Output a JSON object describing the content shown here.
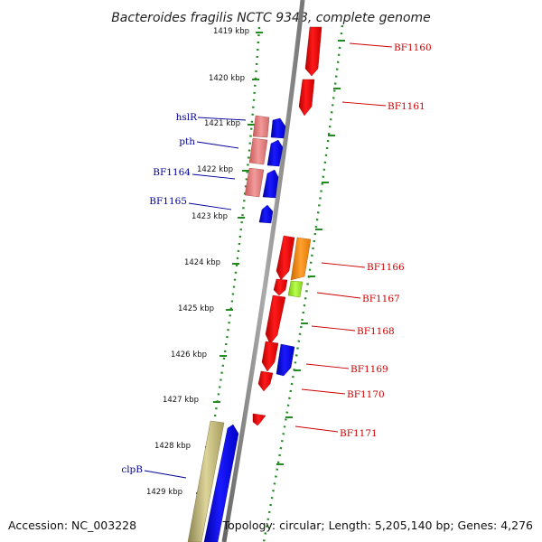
{
  "title": "Bacteroides fragilis NCTC 9343, complete genome",
  "footer": {
    "accession": "Accession: NC_003228",
    "topology": "Topology: circular; Length: 5,205,140 bp; Genes: 4,276"
  },
  "scale_labels": [
    "1419 kbp",
    "1420 kbp",
    "1421 kbp",
    "1422 kbp",
    "1423 kbp",
    "1424 kbp",
    "1425 kbp",
    "1426 kbp",
    "1427 kbp",
    "1428 kbp",
    "1429 kbp"
  ],
  "genes_right": [
    "BF1160",
    "BF1161",
    "BF1166",
    "BF1167",
    "BF1168",
    "BF1169",
    "BF1170",
    "BF1171"
  ],
  "genes_left": [
    "hslR",
    "pth",
    "BF1164",
    "BF1165",
    "clpB"
  ],
  "colors": {
    "red_gene": "#ff0000",
    "blue_gene": "#0000ff",
    "pink_gene": "#e87a7a",
    "orange_gene": "#ff8c00",
    "lime_gene": "#99ee22",
    "khaki_gene": "#bdb36b",
    "tick_green": "#228b22",
    "label_red": "#cc0000",
    "label_blue": "#000099"
  }
}
